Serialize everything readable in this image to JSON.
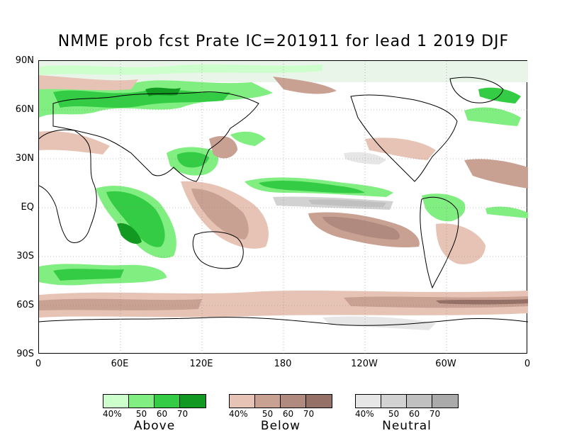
{
  "title": "NMME prob fcst Prate IC=201911 for lead 1 2019 DJF",
  "lat_labels": [
    "90N",
    "60N",
    "30N",
    "EQ",
    "30S",
    "60S",
    "90S"
  ],
  "lon_labels": [
    "0",
    "60E",
    "120E",
    "180",
    "120W",
    "60W",
    "0"
  ],
  "legends": [
    {
      "label": "Above",
      "ticks": [
        "40%",
        "50",
        "60",
        "70"
      ],
      "colors": [
        "#ccffcc",
        "#80ee80",
        "#33cc44",
        "#119922"
      ]
    },
    {
      "label": "Below",
      "ticks": [
        "40%",
        "50",
        "60",
        "70"
      ],
      "colors": [
        "#e6c3b4",
        "#c9a193",
        "#b08a7e",
        "#957066"
      ]
    },
    {
      "label": "Neutral",
      "ticks": [
        "40%",
        "50",
        "60",
        "70"
      ],
      "colors": [
        "#e6e6e6",
        "#d2d2d2",
        "#c0c0c0",
        "#aaaaaa"
      ]
    }
  ]
}
